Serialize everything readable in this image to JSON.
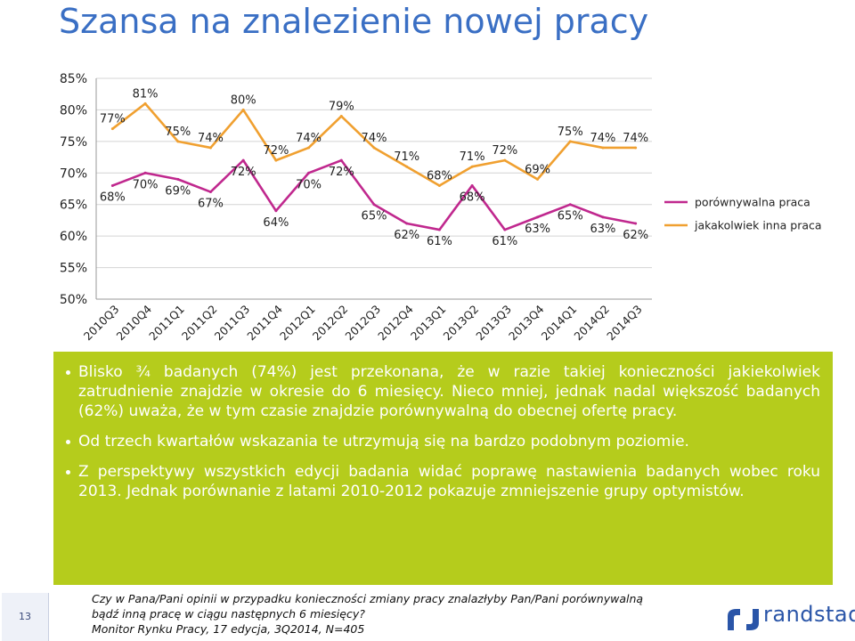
{
  "title": "Szansa na znalezienie nowej pracy",
  "chart_data": {
    "type": "line",
    "categories": [
      "2010Q3",
      "2010Q4",
      "2011Q1",
      "2011Q2",
      "2011Q3",
      "2011Q4",
      "2012Q1",
      "2012Q2",
      "2012Q3",
      "2012Q4",
      "2013Q1",
      "2013Q2",
      "2013Q3",
      "2013Q4",
      "2014Q1",
      "2014Q2",
      "2014Q3"
    ],
    "y_ticks": [
      "85%",
      "80%",
      "75%",
      "70%",
      "65%",
      "60%",
      "55%",
      "50%"
    ],
    "ylim": [
      50,
      85
    ],
    "series": [
      {
        "name": "porównywalna praca",
        "color": "#c0288e",
        "values": [
          68,
          70,
          69,
          67,
          72,
          64,
          70,
          72,
          65,
          62,
          61,
          68,
          61,
          63,
          65,
          63,
          62
        ],
        "labels": [
          "68%",
          "70%",
          "69%",
          "67%",
          "72%",
          "64%",
          "70%",
          "72%",
          "65%",
          "62%",
          "61%",
          "68%",
          "61%",
          "63%",
          "65%",
          "63%",
          "62%"
        ]
      },
      {
        "name": "jakakolwiek inna praca",
        "color": "#f0a030",
        "values": [
          77,
          81,
          75,
          74,
          80,
          72,
          74,
          79,
          74,
          71,
          68,
          71,
          72,
          69,
          75,
          74,
          74
        ],
        "labels": [
          "77%",
          "81%",
          "75%",
          "74%",
          "80%",
          "72%",
          "74%",
          "79%",
          "74%",
          "71%",
          "68%",
          "71%",
          "72%",
          "69%",
          "75%",
          "74%",
          "74%"
        ]
      }
    ],
    "legend_position": "right",
    "grid": true
  },
  "bullets": [
    "Blisko ¾ badanych (74%) jest przekonana, że w razie takiej konieczności jakiekolwiek zatrudnienie znajdzie w okresie do 6 miesięcy. Nieco mniej, jednak nadal większość badanych (62%) uważa, że w tym czasie znajdzie porównywalną do obecnej ofertę pracy.",
    "Od trzech kwartałów wskazania te utrzymują się na bardzo podobnym poziomie.",
    "Z perspektywy wszystkich edycji badania widać poprawę nastawienia badanych wobec roku 2013. Jednak porównanie z latami 2010-2012 pokazuje zmniejszenie grupy optymistów."
  ],
  "footnote": {
    "line1": "Czy w Pana/Pani opinii w przypadku konieczności zmiany pracy znalazłyby Pan/Pani porównywalną",
    "line2": "bądź inną pracę w ciągu następnych 6 miesięcy?",
    "line3": "Monitor Rynku Pracy, 17 edycja, 3Q2014, N=405"
  },
  "page_number": "13",
  "logo_text": "randstad",
  "colors": {
    "title": "#3a6fc4",
    "green_box": "#b5cc1c",
    "brand": "#2a55a8"
  }
}
